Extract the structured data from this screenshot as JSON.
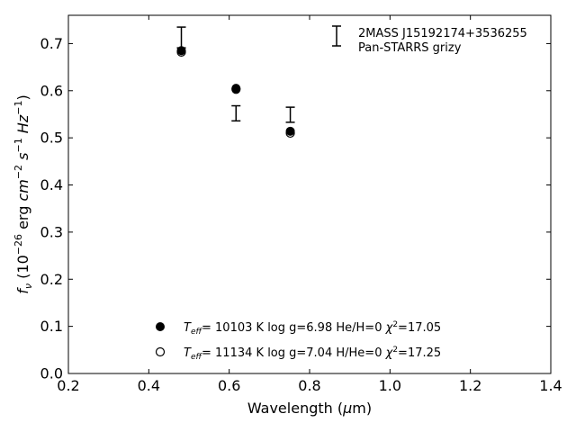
{
  "chart_data": {
    "type": "scatter",
    "xlabel": "Wavelength (μm)",
    "ylabel": "f_ν (10^-26 erg cm^-2 s^-1 Hz^-1)",
    "xlim": [
      0.2,
      1.4
    ],
    "ylim": [
      0.0,
      0.76
    ],
    "xticks": [
      "0.2",
      "0.4",
      "0.6",
      "0.8",
      "1.0",
      "1.2",
      "1.4"
    ],
    "yticks": [
      "0.0",
      "0.1",
      "0.2",
      "0.3",
      "0.4",
      "0.5",
      "0.6",
      "0.7"
    ],
    "grid": false,
    "series": [
      {
        "name": "2MASS J15192174+3536255 Pan-STARRS grizy",
        "marker": "errorbar",
        "x": [
          0.481,
          0.617,
          0.752
        ],
        "y": [
          0.713,
          0.552,
          0.549
        ],
        "yerr": [
          0.022,
          0.016,
          0.016
        ]
      },
      {
        "name": "Teff= 10103 K log g=6.98 He/H=0 χ2=17.05",
        "marker": "filled-circle",
        "x": [
          0.481,
          0.617,
          0.752
        ],
        "y": [
          0.685,
          0.605,
          0.514
        ]
      },
      {
        "name": "Teff= 11134 K log g=7.04 H/He=0 χ2=17.25",
        "marker": "open-circle",
        "x": [
          0.481,
          0.617,
          0.752
        ],
        "y": [
          0.682,
          0.603,
          0.51
        ]
      }
    ],
    "legend_top": {
      "placement": "top-right",
      "line1": "2MASS J15192174+3536255",
      "line2": "Pan-STARRS grizy"
    },
    "legend_bottom": {
      "placement": "bottom-center",
      "entries": [
        {
          "teff_label": "T",
          "teff_sub": "eff",
          "teff_value": "= 10103 K",
          "logg": "log g=6.98",
          "comp": "He/H=0",
          "chi_label": "χ",
          "chi_sup": "2",
          "chi_value": "=17.05"
        },
        {
          "teff_label": "T",
          "teff_sub": "eff",
          "teff_value": "= 11134 K",
          "logg": "log g=7.04",
          "comp": "H/He=0",
          "chi_label": "χ",
          "chi_sup": "2",
          "chi_value": "=17.25"
        }
      ]
    }
  },
  "colors": {
    "marker": "#000000",
    "background": "#ffffff"
  },
  "labels": {
    "xlabel_main": "Wavelength (",
    "xlabel_mu": "μ",
    "xlabel_tail": "m)",
    "ylabel_f": "f",
    "ylabel_nu": "ν",
    "ylabel_a": " (10",
    "ylabel_exp1": "−26",
    "ylabel_b": " erg ",
    "ylabel_cm": "cm",
    "ylabel_exp2": "−2",
    "ylabel_s": "s",
    "ylabel_exp3": "−1",
    "ylabel_hz": "Hz",
    "ylabel_exp4": "−1",
    "ylabel_close": ")"
  }
}
